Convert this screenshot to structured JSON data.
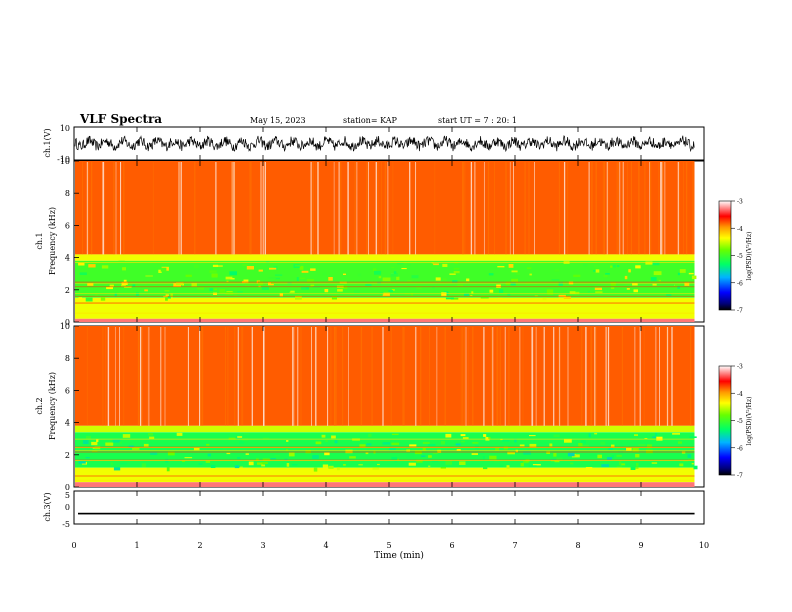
{
  "header": {
    "title": "VLF Spectra",
    "date": "May 15, 2023",
    "station": "station= KAP",
    "start": "start  UT =   7 : 20: 1"
  },
  "chart_data": [
    {
      "type": "line",
      "panel": "ch1-waveform",
      "ylabel": "ch.1(V)",
      "yticks": [
        "10",
        "-10"
      ],
      "ylim": [
        -10,
        10
      ],
      "xlim": [
        0,
        10
      ],
      "trace_amplitude_range": [
        -4,
        4
      ],
      "color": "#000000"
    },
    {
      "type": "heatmap",
      "panel": "ch1-spectrogram",
      "ylabel": "ch.1\nFrequency  (kHz)",
      "yticks": [
        "10",
        "8",
        "6",
        "4",
        "2",
        "0"
      ],
      "ylim": [
        0,
        10
      ],
      "xlim": [
        0,
        9.85
      ],
      "bands": [
        {
          "from_khz": 4.2,
          "to_khz": 10.0,
          "log_psd": -3.8
        },
        {
          "from_khz": 3.8,
          "to_khz": 4.2,
          "log_psd": -4.4
        },
        {
          "from_khz": 1.5,
          "to_khz": 3.8,
          "log_psd": -5.0
        },
        {
          "from_khz": 0.2,
          "to_khz": 1.5,
          "log_psd": -4.4
        },
        {
          "from_khz": 0.0,
          "to_khz": 0.2,
          "log_psd": -3.3
        }
      ],
      "colorbar": {
        "label": "log(PSD)(V²/Hz)",
        "ticks": [
          "-3",
          "-4",
          "-5",
          "-6",
          "-7"
        ],
        "range": [
          -7,
          -3
        ]
      }
    },
    {
      "type": "heatmap",
      "panel": "ch2-spectrogram",
      "ylabel": "ch.2\nFrequency  (kHz)",
      "yticks": [
        "10",
        "8",
        "6",
        "4",
        "2",
        "0"
      ],
      "ylim": [
        0,
        10
      ],
      "xlim": [
        0,
        9.85
      ],
      "bands": [
        {
          "from_khz": 3.8,
          "to_khz": 10.0,
          "log_psd": -3.8
        },
        {
          "from_khz": 3.4,
          "to_khz": 3.8,
          "log_psd": -4.5
        },
        {
          "from_khz": 1.2,
          "to_khz": 3.4,
          "log_psd": -5.2
        },
        {
          "from_khz": 0.3,
          "to_khz": 1.2,
          "log_psd": -4.4
        },
        {
          "from_khz": 0.0,
          "to_khz": 0.3,
          "log_psd": -3.3
        }
      ],
      "colorbar": {
        "label": "log(PSD)(V²/Hz)",
        "ticks": [
          "-3",
          "-4",
          "-5",
          "-6",
          "-7"
        ],
        "range": [
          -7,
          -3
        ]
      }
    },
    {
      "type": "line",
      "panel": "ch3-waveform",
      "ylabel": "ch.3(V)",
      "yticks": [
        "5",
        "0",
        "-5"
      ],
      "ylim": [
        -5,
        5
      ],
      "xlim": [
        0,
        10
      ],
      "trace_amplitude_range": [
        -2.1,
        -1.6
      ],
      "color": "#000000"
    }
  ],
  "x_axis": {
    "label": "Time  (min)",
    "ticks": [
      "0",
      "1",
      "2",
      "3",
      "4",
      "5",
      "6",
      "7",
      "8",
      "9",
      "10"
    ],
    "range": [
      0,
      10
    ]
  }
}
